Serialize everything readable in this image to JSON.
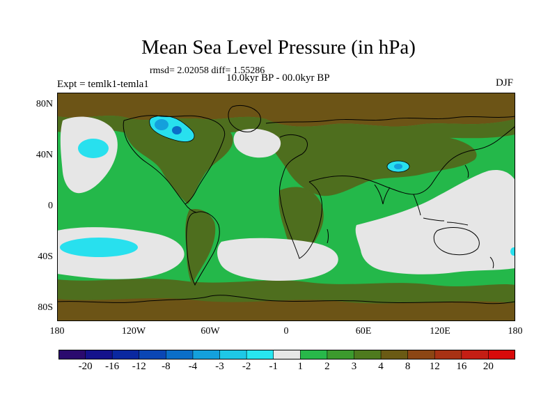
{
  "title": "Mean Sea Level Pressure (in hPa)",
  "stats": "rmsd= 2.02058 diff= 1.55286",
  "subtitle": "10.0kyr BP - 00.0kyr BP",
  "left_label": "Expt = temlk1-temla1",
  "right_label": "DJF",
  "lat_labels": [
    "80N",
    "40N",
    "0",
    "40S",
    "80S"
  ],
  "lon_labels": [
    "180",
    "120W",
    "60W",
    "0",
    "60E",
    "120E",
    "180"
  ],
  "colorbar": {
    "labels": [
      "-20",
      "-16",
      "-12",
      "-8",
      "-4",
      "-3",
      "-2",
      "-1",
      "1",
      "2",
      "3",
      "4",
      "8",
      "12",
      "16",
      "20"
    ],
    "colors": [
      "#2a0a6e",
      "#14128c",
      "#0a28a0",
      "#0a46b4",
      "#0a6ec8",
      "#14a0dc",
      "#1ec8e6",
      "#28e6f0",
      "#e6e6e6",
      "#28b84a",
      "#3c9a2e",
      "#4e7a1e",
      "#6a5a14",
      "#8c4614",
      "#a83214",
      "#c41e14",
      "#d80a0a"
    ]
  },
  "palette": {
    "green": "#24b84a",
    "dark_green": "#4e6e1e",
    "brown": "#6c5416",
    "gray": "#e6e6e6",
    "cyan": "#28e0ee",
    "light_blue": "#14a0dc",
    "blue": "#0a6ec8"
  }
}
